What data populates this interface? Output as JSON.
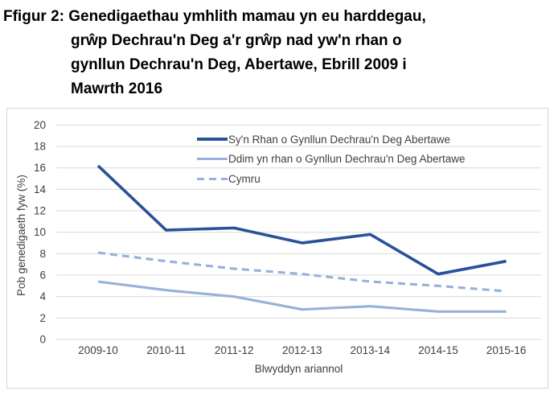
{
  "title": {
    "lines": [
      "Ffigur 2: Genedigaethau ymhlith mamau yn eu harddegau,",
      "grŵp Dechrau'n Deg a'r grŵp nad yw'n rhan o",
      "gynllun Dechrau'n Deg, Abertawe, Ebrill 2009 i",
      "Mawrth 2016"
    ]
  },
  "chart_data": {
    "type": "line",
    "categories": [
      "2009-10",
      "2010-11",
      "2011-12",
      "2012-13",
      "2013-14",
      "2014-15",
      "2015-16"
    ],
    "series": [
      {
        "name": "Sy'n Rhan o Gynllun Dechrau'n Deg Abertawe",
        "values": [
          16.2,
          10.2,
          10.4,
          9.0,
          9.8,
          6.1,
          7.3
        ],
        "color": "#2A5298",
        "style": "solid"
      },
      {
        "name": "Ddim yn rhan o Gynllun Dechrau'n Deg Abertawe",
        "values": [
          5.4,
          4.6,
          4.0,
          2.8,
          3.1,
          2.6,
          2.6
        ],
        "color": "#97B1DC",
        "style": "solid"
      },
      {
        "name": "Cymru",
        "values": [
          8.1,
          7.3,
          6.6,
          6.1,
          5.4,
          5.0,
          4.5
        ],
        "color": "#97B1DC",
        "style": "dashed"
      }
    ],
    "xlabel": "Blwyddyn ariannol",
    "ylabel": "Pob genedigaeth fyw (%)",
    "ylim": [
      0,
      20
    ],
    "ytick_step": 2,
    "grid": true,
    "gridline_color": "#D9D9D9",
    "tick_text_color": "#3F3F3F",
    "legend_position": "top-inside"
  }
}
